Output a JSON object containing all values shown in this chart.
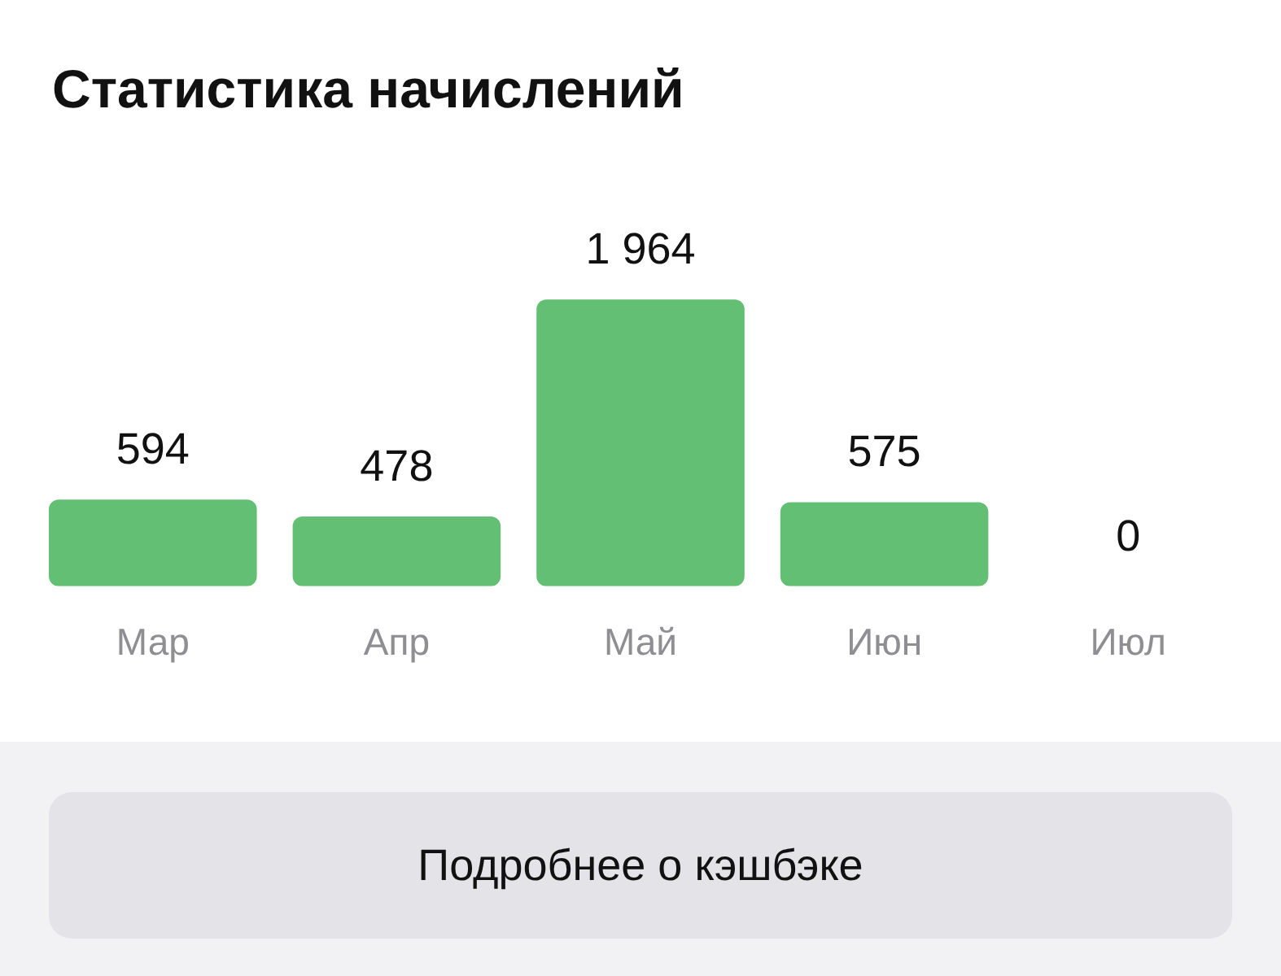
{
  "chart_data": {
    "type": "bar",
    "title": "Статистика начислений",
    "categories": [
      "Мар",
      "Апр",
      "Май",
      "Июн",
      "Июл"
    ],
    "values": [
      594,
      478,
      1964,
      575,
      0
    ],
    "color": "#63bf73",
    "value_labels": [
      "594",
      "478",
      "1 964",
      "575",
      "0"
    ],
    "grid": false,
    "legend": false,
    "annotations": [
      "Подробнее о кэшбэке"
    ]
  }
}
